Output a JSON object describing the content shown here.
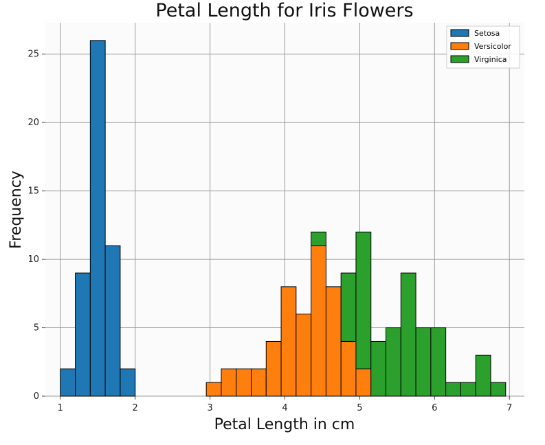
{
  "chart_data": {
    "type": "bar",
    "title": "Petal Length for Iris Flowers",
    "xlabel": "Petal Length in cm",
    "ylabel": "Frequency",
    "xlim": [
      0.8,
      7.2
    ],
    "ylim": [
      0,
      27.3
    ],
    "xticks": [
      1,
      2,
      3,
      4,
      5,
      6,
      7
    ],
    "yticks": [
      0,
      5,
      10,
      15,
      20,
      25
    ],
    "grid": true,
    "stacked": true,
    "legend_position": "top-right",
    "series": [
      {
        "name": "Setosa",
        "color": "#1f77b4",
        "bins": [
          {
            "start": 1.0,
            "end": 1.2,
            "count": 2
          },
          {
            "start": 1.2,
            "end": 1.4,
            "count": 9
          },
          {
            "start": 1.4,
            "end": 1.6,
            "count": 26
          },
          {
            "start": 1.6,
            "end": 1.8,
            "count": 11
          },
          {
            "start": 1.8,
            "end": 2.0,
            "count": 2
          }
        ]
      },
      {
        "name": "Versicolor",
        "color": "#ff7f0e",
        "bins": [
          {
            "start": 2.95,
            "end": 3.15,
            "count": 1
          },
          {
            "start": 3.15,
            "end": 3.35,
            "count": 2
          },
          {
            "start": 3.35,
            "end": 3.55,
            "count": 2
          },
          {
            "start": 3.55,
            "end": 3.75,
            "count": 2
          },
          {
            "start": 3.75,
            "end": 3.95,
            "count": 4
          },
          {
            "start": 3.95,
            "end": 4.15,
            "count": 8
          },
          {
            "start": 4.15,
            "end": 4.35,
            "count": 6
          },
          {
            "start": 4.35,
            "end": 4.55,
            "count": 11
          },
          {
            "start": 4.55,
            "end": 4.75,
            "count": 8
          },
          {
            "start": 4.75,
            "end": 4.95,
            "count": 4
          },
          {
            "start": 4.95,
            "end": 5.15,
            "count": 2
          }
        ]
      },
      {
        "name": "Virginica",
        "color": "#2ca02c",
        "bins": [
          {
            "start": 4.35,
            "end": 4.55,
            "count": 1
          },
          {
            "start": 4.75,
            "end": 4.95,
            "count": 5
          },
          {
            "start": 4.95,
            "end": 5.15,
            "count": 10
          },
          {
            "start": 5.15,
            "end": 5.35,
            "count": 4
          },
          {
            "start": 5.35,
            "end": 5.55,
            "count": 5
          },
          {
            "start": 5.55,
            "end": 5.75,
            "count": 9
          },
          {
            "start": 5.75,
            "end": 5.95,
            "count": 5
          },
          {
            "start": 5.95,
            "end": 6.15,
            "count": 5
          },
          {
            "start": 6.15,
            "end": 6.35,
            "count": 1
          },
          {
            "start": 6.35,
            "end": 6.55,
            "count": 1
          },
          {
            "start": 6.55,
            "end": 6.75,
            "count": 3
          },
          {
            "start": 6.75,
            "end": 6.95,
            "count": 1
          }
        ]
      }
    ]
  }
}
